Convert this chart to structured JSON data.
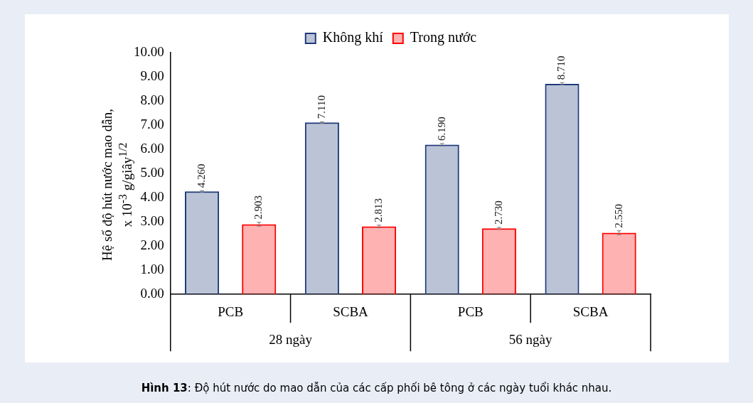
{
  "chart_data": {
    "type": "bar",
    "ylabel": "Hệ số độ hút nước mao dẫn,\nx 10$^{-3}$ g/giây$^{1/2}$",
    "categories": [
      "PCB",
      "SCBA",
      "PCB",
      "SCBA"
    ],
    "series": [
      {
        "name": "Không khí",
        "color": "#1f3a7a",
        "values": [
          4.26,
          7.11,
          6.19,
          8.71
        ],
        "value_labels": [
          "4.260",
          "7.110",
          "6.190",
          "8.710"
        ],
        "errors": [
          0.03,
          0.03,
          0.05,
          0.05
        ]
      },
      {
        "name": "Trong nước",
        "color": "#ff0000",
        "values": [
          2.903,
          2.813,
          2.73,
          2.55
        ],
        "value_labels": [
          "2.903",
          "2.813",
          "2.730",
          "2.550"
        ],
        "errors": [
          0.08,
          0.05,
          0.04,
          0.08
        ]
      }
    ],
    "ylim": [
      0,
      10
    ],
    "yticks": [
      {
        "value": 0,
        "label": "0.00"
      },
      {
        "value": 1,
        "label": "1.00"
      },
      {
        "value": 2,
        "label": "2.00"
      },
      {
        "value": 3,
        "label": "3.00"
      },
      {
        "value": 4,
        "label": "4.00"
      },
      {
        "value": 5,
        "label": "5.00"
      },
      {
        "value": 6,
        "label": "6.00"
      },
      {
        "value": 7,
        "label": "7.00"
      },
      {
        "value": 8,
        "label": "8.00"
      },
      {
        "value": 9,
        "label": "9.00"
      },
      {
        "value": 10,
        "label": "10.00"
      }
    ],
    "grid": false,
    "legend": "top",
    "annotations": [
      "28 ngày",
      "56 ngày",
      "Hình 13: Độ hút nước do mao dẫn của các cấp phối bê tông ở các ngày tuổi khác nhau."
    ]
  }
}
